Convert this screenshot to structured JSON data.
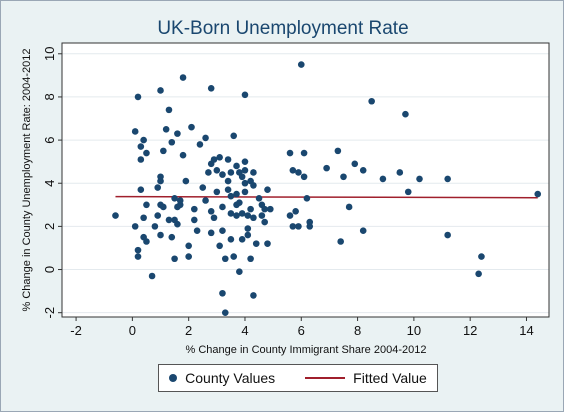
{
  "chart_data": {
    "type": "scatter",
    "title": "UK-Born Unemployment Rate",
    "xlabel": "% Change in County Immigrant Share 2004-2012",
    "ylabel": "% Change in County Unemployment Rate: 2004-2012",
    "xlim": [
      -2.5,
      14.8
    ],
    "ylim": [
      -2.2,
      10.5
    ],
    "xticks": [
      -2,
      0,
      2,
      4,
      6,
      8,
      10,
      12,
      14
    ],
    "yticks": [
      -2,
      0,
      2,
      4,
      6,
      8,
      10
    ],
    "grid": "horizontal",
    "legend_position": "bottom",
    "series": [
      {
        "name": "County Values",
        "kind": "scatter",
        "color": "#1a476f",
        "points": [
          [
            -0.6,
            2.5
          ],
          [
            0.1,
            2.0
          ],
          [
            0.2,
            0.9
          ],
          [
            0.2,
            0.6
          ],
          [
            0.1,
            6.4
          ],
          [
            0.2,
            8.0
          ],
          [
            0.3,
            5.7
          ],
          [
            0.3,
            3.7
          ],
          [
            0.3,
            5.1
          ],
          [
            0.4,
            6.0
          ],
          [
            0.4,
            2.4
          ],
          [
            0.4,
            1.5
          ],
          [
            0.5,
            5.4
          ],
          [
            0.5,
            3.0
          ],
          [
            0.5,
            1.3
          ],
          [
            0.7,
            -0.3
          ],
          [
            0.8,
            2.0
          ],
          [
            0.9,
            2.5
          ],
          [
            0.9,
            3.8
          ],
          [
            1.0,
            4.1
          ],
          [
            1.0,
            4.3
          ],
          [
            1.0,
            3.0
          ],
          [
            1.0,
            1.6
          ],
          [
            1.0,
            8.3
          ],
          [
            1.1,
            2.9
          ],
          [
            1.1,
            5.5
          ],
          [
            1.2,
            6.5
          ],
          [
            1.3,
            7.4
          ],
          [
            1.3,
            2.3
          ],
          [
            1.4,
            1.5
          ],
          [
            1.4,
            5.9
          ],
          [
            1.5,
            0.5
          ],
          [
            1.5,
            2.3
          ],
          [
            1.5,
            3.3
          ],
          [
            1.6,
            2.1
          ],
          [
            1.6,
            2.9
          ],
          [
            1.6,
            6.3
          ],
          [
            1.7,
            3.0
          ],
          [
            1.7,
            3.2
          ],
          [
            1.8,
            8.9
          ],
          [
            1.8,
            5.3
          ],
          [
            1.9,
            4.1
          ],
          [
            2.0,
            0.6
          ],
          [
            2.0,
            1.1
          ],
          [
            2.1,
            6.6
          ],
          [
            2.2,
            2.3
          ],
          [
            2.2,
            2.8
          ],
          [
            2.3,
            1.8
          ],
          [
            2.4,
            5.8
          ],
          [
            2.5,
            3.8
          ],
          [
            2.6,
            6.1
          ],
          [
            2.6,
            3.2
          ],
          [
            2.7,
            4.5
          ],
          [
            2.8,
            8.4
          ],
          [
            2.8,
            4.9
          ],
          [
            2.8,
            2.7
          ],
          [
            2.8,
            1.7
          ],
          [
            2.9,
            5.1
          ],
          [
            2.9,
            2.4
          ],
          [
            3.0,
            4.6
          ],
          [
            3.0,
            3.6
          ],
          [
            3.1,
            5.2
          ],
          [
            3.1,
            1.1
          ],
          [
            3.2,
            4.4
          ],
          [
            3.2,
            2.9
          ],
          [
            3.2,
            1.8
          ],
          [
            3.2,
            -1.1
          ],
          [
            3.3,
            -2.0
          ],
          [
            3.3,
            0.5
          ],
          [
            3.4,
            5.1
          ],
          [
            3.4,
            4.1
          ],
          [
            3.4,
            3.7
          ],
          [
            3.5,
            4.5
          ],
          [
            3.5,
            3.4
          ],
          [
            3.5,
            2.6
          ],
          [
            3.5,
            1.4
          ],
          [
            3.6,
            6.2
          ],
          [
            3.6,
            0.6
          ],
          [
            3.7,
            4.8
          ],
          [
            3.7,
            3.5
          ],
          [
            3.7,
            3.0
          ],
          [
            3.7,
            2.5
          ],
          [
            3.8,
            4.5
          ],
          [
            3.8,
            3.1
          ],
          [
            3.8,
            -0.1
          ],
          [
            3.9,
            4.3
          ],
          [
            3.9,
            2.6
          ],
          [
            3.9,
            1.4
          ],
          [
            4.0,
            8.1
          ],
          [
            4.0,
            5.0
          ],
          [
            4.0,
            4.6
          ],
          [
            4.0,
            4.0
          ],
          [
            4.0,
            3.6
          ],
          [
            4.1,
            2.5
          ],
          [
            4.1,
            1.9
          ],
          [
            4.1,
            1.6
          ],
          [
            4.2,
            4.1
          ],
          [
            4.2,
            2.8
          ],
          [
            4.2,
            0.5
          ],
          [
            4.3,
            4.5
          ],
          [
            4.3,
            3.9
          ],
          [
            4.3,
            2.4
          ],
          [
            4.3,
            -1.2
          ],
          [
            4.4,
            1.2
          ],
          [
            4.5,
            3.3
          ],
          [
            4.6,
            2.5
          ],
          [
            4.6,
            3.0
          ],
          [
            4.7,
            2.2
          ],
          [
            4.7,
            2.8
          ],
          [
            4.8,
            3.7
          ],
          [
            4.8,
            1.2
          ],
          [
            4.9,
            2.8
          ],
          [
            5.6,
            2.5
          ],
          [
            5.6,
            5.4
          ],
          [
            5.7,
            4.6
          ],
          [
            5.7,
            2.0
          ],
          [
            5.8,
            2.7
          ],
          [
            5.9,
            4.5
          ],
          [
            5.9,
            2.0
          ],
          [
            6.0,
            9.5
          ],
          [
            6.1,
            4.3
          ],
          [
            6.1,
            5.4
          ],
          [
            6.2,
            3.3
          ],
          [
            6.3,
            2.0
          ],
          [
            6.3,
            2.2
          ],
          [
            6.9,
            4.7
          ],
          [
            7.3,
            5.5
          ],
          [
            7.4,
            1.3
          ],
          [
            7.5,
            4.3
          ],
          [
            7.7,
            2.9
          ],
          [
            7.9,
            4.9
          ],
          [
            8.2,
            4.6
          ],
          [
            8.2,
            1.8
          ],
          [
            8.5,
            7.8
          ],
          [
            8.9,
            4.2
          ],
          [
            9.5,
            4.5
          ],
          [
            9.7,
            7.2
          ],
          [
            9.8,
            3.6
          ],
          [
            10.2,
            4.2
          ],
          [
            11.2,
            1.6
          ],
          [
            11.2,
            4.2
          ],
          [
            12.3,
            -0.2
          ],
          [
            12.4,
            0.6
          ],
          [
            14.4,
            3.5
          ]
        ]
      },
      {
        "name": "Fitted Value",
        "kind": "line",
        "color": "#a01f2c",
        "points": [
          [
            -0.6,
            3.38
          ],
          [
            14.4,
            3.33
          ]
        ]
      }
    ]
  }
}
